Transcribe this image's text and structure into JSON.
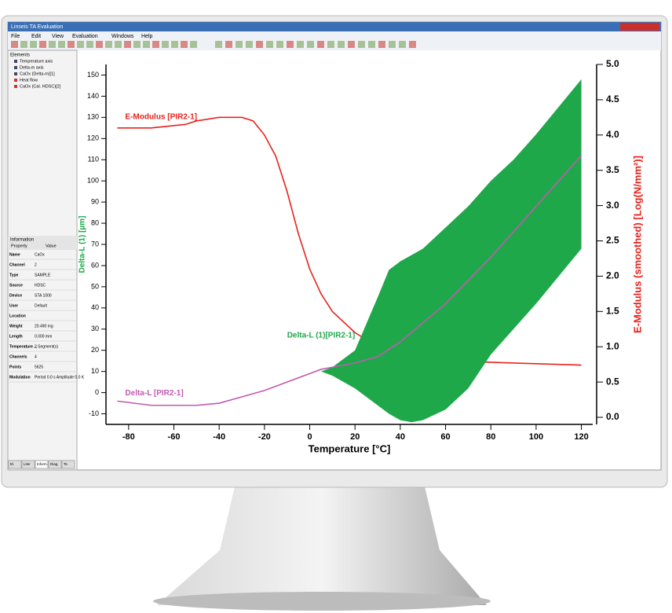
{
  "app": {
    "window_title": "Linseis TA Evaluation",
    "menu": [
      "File",
      "Edit",
      "View",
      "Evaluation",
      "Windows",
      "Help"
    ],
    "elements_title": "Elements",
    "elements": [
      "Temperature axis",
      "Delta-m axis",
      "CaOx (Delta-m)[1]",
      "Heat flow",
      "CaOx (Cal. HDSC)[2]"
    ],
    "info_title": "Information",
    "info_header": [
      "Property",
      "Value"
    ],
    "info_rows": [
      [
        "Name",
        "CaOx"
      ],
      [
        "Channel",
        "2"
      ],
      [
        "Type",
        "SAMPLE"
      ],
      [
        "Source",
        "HDSC"
      ],
      [
        "Device",
        "STA 1000"
      ],
      [
        "User",
        "Default"
      ],
      [
        "Location"
      ],
      [
        "Weight",
        "20.490 mg"
      ],
      [
        "Length",
        "0.000 mm"
      ],
      [
        "Temperature ...",
        "2 Segment(s)"
      ],
      [
        "Channels",
        "4"
      ],
      [
        "Points",
        "5625"
      ],
      [
        "Modulation",
        "Period 0.0 s Amplitude 0.0 K"
      ]
    ],
    "tabs": [
      "El.",
      "Liter",
      "Inform.",
      "Diag.",
      "Te."
    ]
  },
  "chart_data": {
    "type": "line",
    "x_label": "Temperature [°C]",
    "y_label": "Delta-L (1) [µm]",
    "y2_label": "E-Modulus (smoothed) [Log(N/mm²)]",
    "xlim": [
      -90,
      125
    ],
    "xticks": [
      -80,
      -60,
      -40,
      -20,
      0,
      20,
      40,
      60,
      80,
      100,
      120
    ],
    "ylim": [
      -15,
      155
    ],
    "yticks": [
      -10,
      0,
      10,
      20,
      30,
      40,
      50,
      60,
      70,
      80,
      90,
      100,
      110,
      120,
      130,
      140,
      150
    ],
    "y2lim": [
      -0.1,
      5.0
    ],
    "y2ticks": [
      {
        "value": 0,
        "label": "0.0"
      },
      0.5,
      {
        "value": 1,
        "label": "1.0"
      },
      1.5,
      {
        "value": 2,
        "label": "2.0"
      },
      2.5,
      {
        "value": 3,
        "label": "3.0"
      },
      3.5,
      {
        "value": 4,
        "label": "4.0"
      },
      4.5,
      {
        "value": 5,
        "label": "5.0"
      }
    ],
    "series": [
      {
        "name": "E-Modulus [PIR2-1]",
        "color": "#e8231c",
        "axis": "y2",
        "x": [
          -85,
          -70,
          -55,
          -50,
          -40,
          -30,
          -25,
          -20,
          -15,
          -10,
          -5,
          0,
          5,
          10,
          20,
          30,
          40,
          50,
          60,
          80,
          100,
          120
        ],
        "values": [
          4.1,
          4.1,
          4.15,
          4.2,
          4.25,
          4.25,
          4.2,
          4.0,
          3.7,
          3.2,
          2.6,
          2.1,
          1.75,
          1.5,
          1.2,
          1.0,
          0.9,
          0.85,
          0.8,
          0.78,
          0.76,
          0.74
        ]
      },
      {
        "name": "Delta-L (1)[PIR2-1]",
        "color": "#1fa84a",
        "x": [
          5,
          10,
          20,
          30,
          35,
          40,
          45,
          50,
          60,
          70,
          80,
          90,
          100,
          110,
          120
        ],
        "upper": [
          10,
          12,
          20,
          45,
          58,
          62,
          65,
          68,
          78,
          88,
          100,
          110,
          122,
          135,
          148
        ],
        "lower": [
          10,
          8,
          2,
          -6,
          -10,
          -13,
          -14,
          -13,
          -8,
          2,
          18,
          30,
          42,
          55,
          68
        ]
      },
      {
        "name": "Delta-L [PIR2-1]",
        "color": "#c05ab0",
        "x": [
          -85,
          -70,
          -50,
          -40,
          -30,
          -20,
          -10,
          0,
          5,
          10,
          20,
          30,
          40,
          50,
          60,
          70,
          80,
          90,
          100,
          110,
          120
        ],
        "values": [
          -4,
          -6,
          -6,
          -5,
          -2,
          1,
          5,
          9,
          11,
          12,
          14,
          17,
          24,
          33,
          42,
          53,
          64,
          76,
          88,
          100,
          112
        ]
      }
    ]
  }
}
